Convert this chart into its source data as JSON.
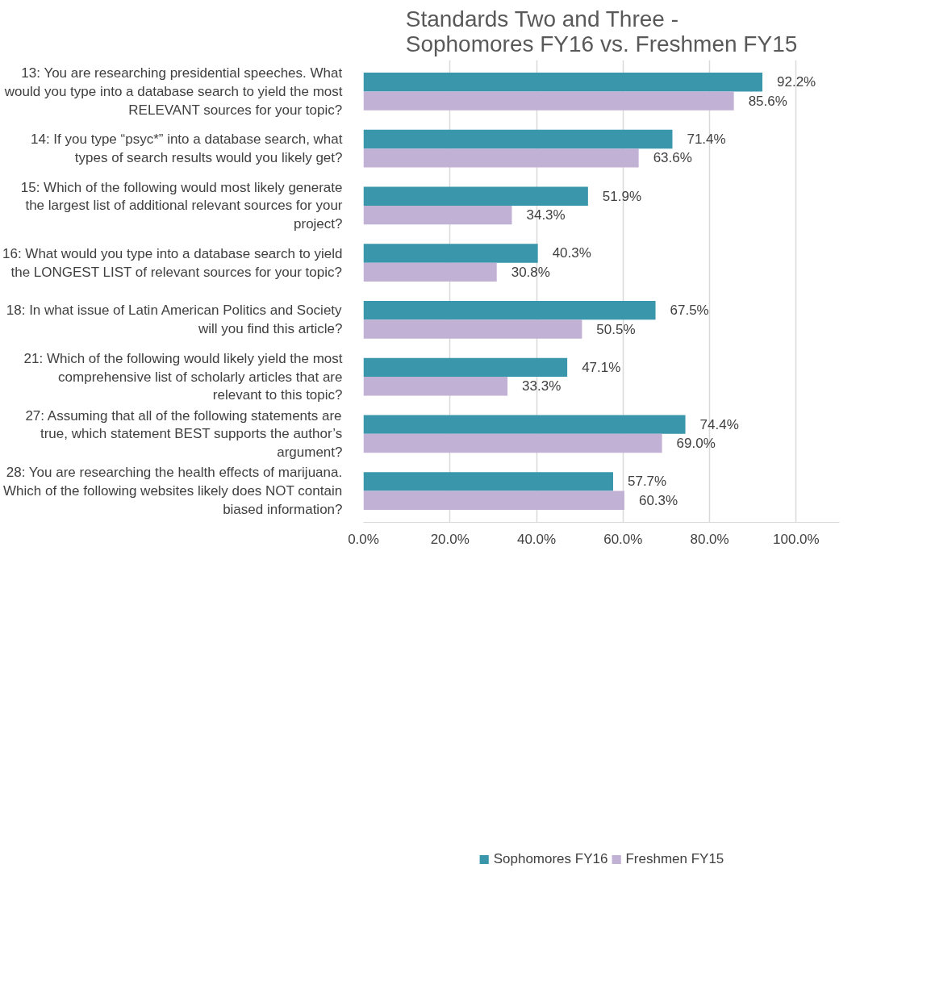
{
  "chart_data": {
    "type": "bar",
    "orientation": "horizontal",
    "title": "Standards Two and Three - Sophomores FY16 vs. Freshmen FY15",
    "categories": [
      "13: You are researching presidential speeches. What would you type into a database search to yield the most RELEVANT sources for your topic?",
      "14: If you type “psyc*” into a database search, what types of search results would you likely get?",
      "15: Which of the following would most likely generate the largest list of additional relevant sources for your project?",
      "16: What would you type into a database search to yield the LONGEST LIST of relevant sources for your topic?",
      "18: In what issue of Latin American Politics and Society will you find this article?",
      "21: Which of the following would likely yield the most comprehensive list of scholarly articles that are relevant to this topic?",
      "27: Assuming that all of the following statements are true, which statement BEST supports the author’s argument?",
      "28: You are researching the health effects of marijuana. Which of the following websites likely does NOT contain biased information?"
    ],
    "series": [
      {
        "name": "Sophomores FY16",
        "color": "#3a97ab",
        "values": [
          92.2,
          71.4,
          51.9,
          40.3,
          67.5,
          47.1,
          74.4,
          57.7
        ],
        "value_labels": [
          "92.2%",
          "71.4%",
          "51.9%",
          "40.3%",
          "67.5%",
          "47.1%",
          "74.4%",
          "57.7%"
        ]
      },
      {
        "name": "Freshmen FY15",
        "color": "#c1b1d4",
        "values": [
          85.6,
          63.6,
          34.3,
          30.8,
          50.5,
          33.3,
          69.0,
          60.3
        ],
        "value_labels": [
          "85.6%",
          "63.6%",
          "34.3%",
          "30.8%",
          "50.5%",
          "33.3%",
          "69.0%",
          "60.3%"
        ]
      }
    ],
    "xlim": [
      0,
      110
    ],
    "xticks": [
      {
        "value": 0,
        "label": "0.0%"
      },
      {
        "value": 20,
        "label": "20.0%"
      },
      {
        "value": 40,
        "label": "40.0%"
      },
      {
        "value": 60,
        "label": "60.0%"
      },
      {
        "value": 80,
        "label": "80.0%"
      },
      {
        "value": 100,
        "label": "100.0%"
      }
    ],
    "grid": "x",
    "legend": "bottom"
  }
}
